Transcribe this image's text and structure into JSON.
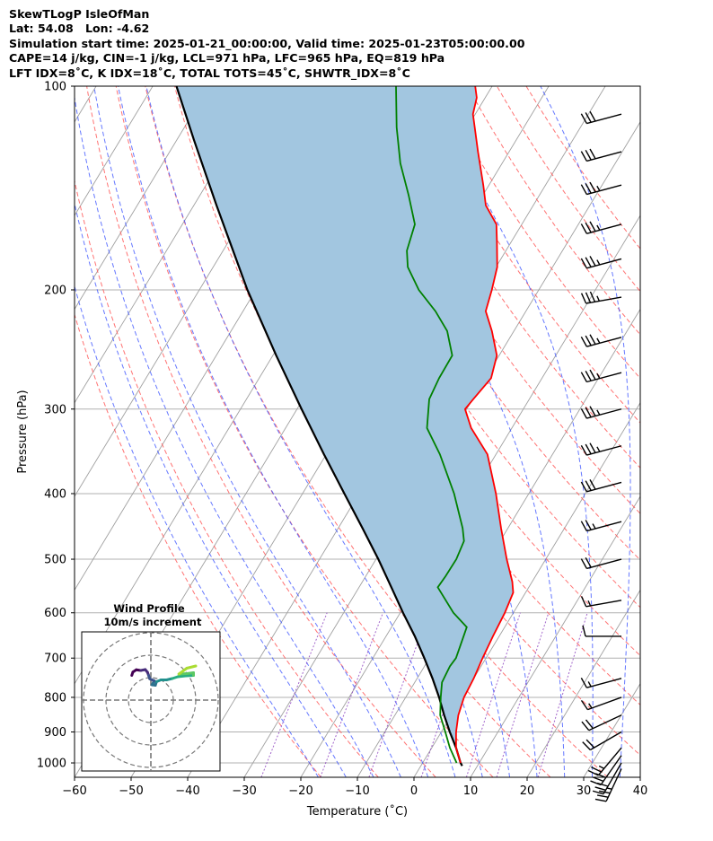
{
  "header": {
    "title": "SkewTLogP IsleOfMan",
    "location": "Lat: 54.08   Lon: -4.62",
    "times": "Simulation start time: 2025-01-21_00:00:00, Valid time: 2025-01-23T05:00:00.00",
    "indices_1": "CAPE=14 j/kg, CIN=-1 j/kg, LCL=971 hPa, LFC=965 hPa, EQ=819 hPa",
    "indices_2": "LFT IDX=8˚C, K IDX=18˚C, TOTAL TOTS=45˚C, SHWTR_IDX=8˚C"
  },
  "chart_data": {
    "type": "skewt",
    "xlabel": "Temperature (˚C)",
    "ylabel": "Pressure (hPa)",
    "xlim": [
      -60,
      40
    ],
    "ylim_hpa": [
      1050,
      100
    ],
    "log_pressure_axis": true,
    "grid": true,
    "x_ticks": [
      "−60",
      "−50",
      "−40",
      "−30",
      "−20",
      "−10",
      "0",
      "10",
      "20",
      "30",
      "40"
    ],
    "x_tick_values": [
      -60,
      -50,
      -40,
      -30,
      -20,
      -10,
      0,
      10,
      20,
      30,
      40
    ],
    "y_ticks": [
      "1000",
      "900",
      "800",
      "700",
      "600",
      "500",
      "400",
      "300",
      "200",
      "100"
    ],
    "y_tick_values": [
      1000,
      900,
      800,
      700,
      600,
      500,
      400,
      300,
      200,
      100
    ],
    "colors": {
      "temperature": "#ff0000",
      "dewpoint": "#008000",
      "parcel": "#000000",
      "cape_fill": "#a2c6e0",
      "isotherm": "#a0a0a0",
      "dry_adiabat": "#ff5a5a",
      "moist_adiabat": "#3f56ff",
      "mixing_ratio": "#8b3fbe"
    },
    "temperature": [
      {
        "p": 1000,
        "t": 6.7
      },
      {
        "p": 950,
        "t": 4.3
      },
      {
        "p": 900,
        "t": 2.6
      },
      {
        "p": 850,
        "t": 1.2
      },
      {
        "p": 800,
        "t": 0.3
      },
      {
        "p": 750,
        "t": 0.0
      },
      {
        "p": 700,
        "t": -0.6
      },
      {
        "p": 650,
        "t": -1.1
      },
      {
        "p": 600,
        "t": -1.5
      },
      {
        "p": 560,
        "t": -2.2
      },
      {
        "p": 540,
        "t": -3.5
      },
      {
        "p": 500,
        "t": -6.9
      },
      {
        "p": 450,
        "t": -11.2
      },
      {
        "p": 400,
        "t": -15.8
      },
      {
        "p": 350,
        "t": -21.5
      },
      {
        "p": 320,
        "t": -27.2
      },
      {
        "p": 300,
        "t": -30.3
      },
      {
        "p": 290,
        "t": -29.9
      },
      {
        "p": 270,
        "t": -29.0
      },
      {
        "p": 250,
        "t": -30.4
      },
      {
        "p": 230,
        "t": -33.9
      },
      {
        "p": 215,
        "t": -37.1
      },
      {
        "p": 200,
        "t": -38.3
      },
      {
        "p": 185,
        "t": -39.8
      },
      {
        "p": 170,
        "t": -42.5
      },
      {
        "p": 160,
        "t": -44.5
      },
      {
        "p": 150,
        "t": -48.4
      },
      {
        "p": 140,
        "t": -51.0
      },
      {
        "p": 125,
        "t": -55.5
      },
      {
        "p": 110,
        "t": -60.4
      },
      {
        "p": 104,
        "t": -61.5
      },
      {
        "p": 100,
        "t": -63.0
      }
    ],
    "dewpoint": [
      {
        "p": 1000,
        "t": 6.0
      },
      {
        "p": 950,
        "t": 3.2
      },
      {
        "p": 900,
        "t": 0.7
      },
      {
        "p": 850,
        "t": -2.0
      },
      {
        "p": 800,
        "t": -3.8
      },
      {
        "p": 760,
        "t": -5.2
      },
      {
        "p": 720,
        "t": -5.5
      },
      {
        "p": 700,
        "t": -5.3
      },
      {
        "p": 630,
        "t": -6.7
      },
      {
        "p": 600,
        "t": -10.6
      },
      {
        "p": 550,
        "t": -16.1
      },
      {
        "p": 530,
        "t": -15.9
      },
      {
        "p": 500,
        "t": -15.8
      },
      {
        "p": 470,
        "t": -16.4
      },
      {
        "p": 450,
        "t": -18.0
      },
      {
        "p": 400,
        "t": -23.2
      },
      {
        "p": 350,
        "t": -29.9
      },
      {
        "p": 320,
        "t": -35.0
      },
      {
        "p": 290,
        "t": -37.7
      },
      {
        "p": 270,
        "t": -38.2
      },
      {
        "p": 250,
        "t": -38.3
      },
      {
        "p": 230,
        "t": -41.8
      },
      {
        "p": 215,
        "t": -46.0
      },
      {
        "p": 200,
        "t": -51.2
      },
      {
        "p": 185,
        "t": -55.6
      },
      {
        "p": 175,
        "t": -57.5
      },
      {
        "p": 160,
        "t": -58.9
      },
      {
        "p": 145,
        "t": -63.1
      },
      {
        "p": 130,
        "t": -68.0
      },
      {
        "p": 115,
        "t": -72.5
      },
      {
        "p": 100,
        "t": -77.0
      }
    ],
    "parcel_profile": [
      {
        "p": 1010,
        "t": 7.3
      },
      {
        "p": 1000,
        "t": 6.7
      },
      {
        "p": 950,
        "t": 4.3
      },
      {
        "p": 900,
        "t": 1.5
      },
      {
        "p": 850,
        "t": -1.3
      },
      {
        "p": 800,
        "t": -4.1
      },
      {
        "p": 750,
        "t": -7.3
      },
      {
        "p": 700,
        "t": -10.9
      },
      {
        "p": 650,
        "t": -14.9
      },
      {
        "p": 600,
        "t": -19.5
      },
      {
        "p": 550,
        "t": -24.3
      },
      {
        "p": 500,
        "t": -29.6
      },
      {
        "p": 450,
        "t": -35.7
      },
      {
        "p": 400,
        "t": -42.6
      },
      {
        "p": 350,
        "t": -50.4
      },
      {
        "p": 300,
        "t": -59.2
      },
      {
        "p": 250,
        "t": -69.4
      },
      {
        "p": 200,
        "t": -81.5
      },
      {
        "p": 150,
        "t": -96.0
      },
      {
        "p": 120,
        "t": -107.0
      },
      {
        "p": 100,
        "t": -115.8
      }
    ],
    "wind_barbs": [
      {
        "p": 1020,
        "direction_deg": 205,
        "speed_kt": 35
      },
      {
        "p": 1000,
        "direction_deg": 210,
        "speed_kt": 30
      },
      {
        "p": 975,
        "direction_deg": 215,
        "speed_kt": 30
      },
      {
        "p": 950,
        "direction_deg": 220,
        "speed_kt": 25
      },
      {
        "p": 900,
        "direction_deg": 240,
        "speed_kt": 20
      },
      {
        "p": 850,
        "direction_deg": 245,
        "speed_kt": 20
      },
      {
        "p": 800,
        "direction_deg": 250,
        "speed_kt": 15
      },
      {
        "p": 750,
        "direction_deg": 255,
        "speed_kt": 15
      },
      {
        "p": 650,
        "direction_deg": 270,
        "speed_kt": 10
      },
      {
        "p": 575,
        "direction_deg": 260,
        "speed_kt": 15
      },
      {
        "p": 500,
        "direction_deg": 255,
        "speed_kt": 20
      },
      {
        "p": 440,
        "direction_deg": 255,
        "speed_kt": 25
      },
      {
        "p": 385,
        "direction_deg": 255,
        "speed_kt": 30
      },
      {
        "p": 340,
        "direction_deg": 255,
        "speed_kt": 35
      },
      {
        "p": 300,
        "direction_deg": 255,
        "speed_kt": 35
      },
      {
        "p": 265,
        "direction_deg": 255,
        "speed_kt": 35
      },
      {
        "p": 235,
        "direction_deg": 255,
        "speed_kt": 35
      },
      {
        "p": 205,
        "direction_deg": 260,
        "speed_kt": 35
      },
      {
        "p": 180,
        "direction_deg": 255,
        "speed_kt": 35
      },
      {
        "p": 160,
        "direction_deg": 255,
        "speed_kt": 35
      },
      {
        "p": 140,
        "direction_deg": 255,
        "speed_kt": 35
      },
      {
        "p": 125,
        "direction_deg": 255,
        "speed_kt": 30
      },
      {
        "p": 110,
        "direction_deg": 255,
        "speed_kt": 30
      }
    ],
    "hodograph": {
      "title": "Wind Profile",
      "subtitle": "10m/s increment",
      "ring_increment_ms": 10,
      "colormap": "viridis",
      "points": [
        {
          "u": -8.5,
          "v": 11.0
        },
        {
          "u": -8.0,
          "v": 12.5
        },
        {
          "u": -6.5,
          "v": 13.5
        },
        {
          "u": -4.5,
          "v": 13.2
        },
        {
          "u": -2.5,
          "v": 13.6
        },
        {
          "u": -1.5,
          "v": 12.4
        },
        {
          "u": -1.0,
          "v": 11.0
        },
        {
          "u": -0.5,
          "v": 9.5
        },
        {
          "u": 1.5,
          "v": 8.6
        },
        {
          "u": 1.0,
          "v": 7.6
        },
        {
          "u": 0.5,
          "v": 6.8
        },
        {
          "u": 2.0,
          "v": 6.6
        },
        {
          "u": 2.5,
          "v": 8.2
        },
        {
          "u": 4.5,
          "v": 9.0
        },
        {
          "u": 7.0,
          "v": 9.0
        },
        {
          "u": 9.5,
          "v": 9.6
        },
        {
          "u": 12.0,
          "v": 10.4
        },
        {
          "u": 15.5,
          "v": 10.8
        },
        {
          "u": 19.0,
          "v": 11.0
        },
        {
          "u": 19.0,
          "v": 12.2
        },
        {
          "u": 16.0,
          "v": 11.8
        },
        {
          "u": 12.5,
          "v": 11.6
        },
        {
          "u": 16.0,
          "v": 14.2
        },
        {
          "u": 20.0,
          "v": 15.2
        }
      ]
    }
  }
}
